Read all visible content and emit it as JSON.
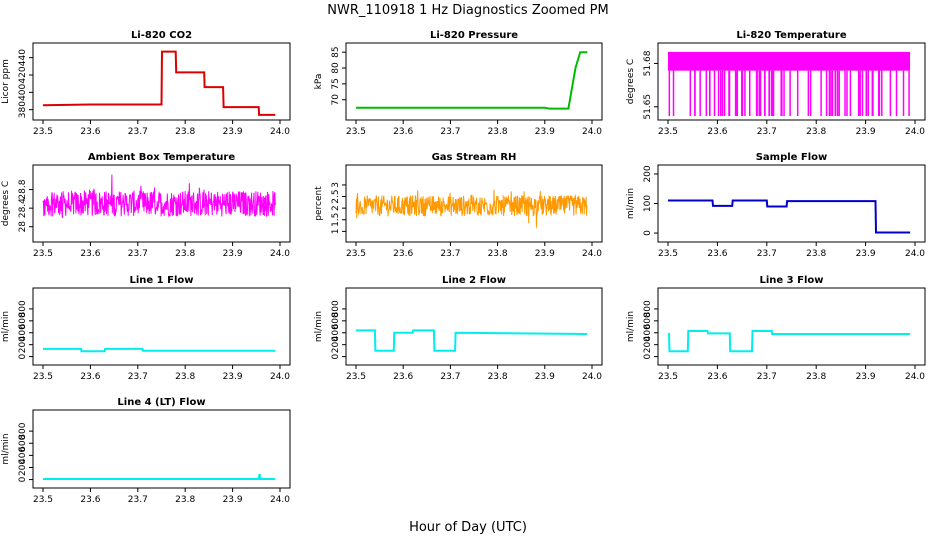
{
  "title": "NWR_110918  1 Hz Diagnostics Zoomed PM",
  "xlabel": "Hour of Day (UTC)",
  "chart_data": [
    {
      "type": "line",
      "title": "Li-820 CO2",
      "ylabel": "Licor ppm",
      "color": "#dd0000",
      "xlim": [
        23.5,
        24.0
      ],
      "ylim": [
        375,
        450
      ],
      "xticks": [
        "23.5",
        "23.6",
        "23.7",
        "23.8",
        "23.9",
        "24.0"
      ],
      "yticks": [
        380,
        400,
        420,
        440
      ],
      "x": [
        23.5,
        23.6,
        23.75,
        23.751,
        23.78,
        23.781,
        23.84,
        23.841,
        23.88,
        23.881,
        23.955,
        23.956,
        23.99
      ],
      "y": [
        385,
        386,
        386,
        447,
        447,
        423,
        423,
        406,
        406,
        383,
        383,
        374,
        374
      ]
    },
    {
      "type": "line",
      "title": "Li-820 Pressure",
      "ylabel": "kPa",
      "color": "#00bb00",
      "xlim": [
        23.5,
        24.0
      ],
      "ylim": [
        65.5,
        86
      ],
      "xticks": [
        "23.5",
        "23.6",
        "23.7",
        "23.8",
        "23.9",
        "24.0"
      ],
      "yticks": [
        70,
        75,
        80,
        85
      ],
      "x": [
        23.5,
        23.9,
        23.91,
        23.95,
        23.965,
        23.975,
        23.99
      ],
      "y": [
        67.5,
        67.5,
        67.2,
        67.2,
        80,
        85,
        85
      ]
    },
    {
      "type": "line",
      "title": "Li-820 Temperature",
      "ylabel": "degrees C",
      "color": "#ff00ff",
      "xlim": [
        23.5,
        24.0
      ],
      "ylim": [
        51.645,
        51.69
      ],
      "xticks": [
        "23.5",
        "23.6",
        "23.7",
        "23.8",
        "23.9",
        "24.0"
      ],
      "yticks": [
        51.65,
        51.68
      ],
      "x": [
        23.5,
        23.99
      ],
      "y": [
        51.675,
        51.675
      ]
    },
    {
      "type": "line",
      "title": "Ambient Box Temperature",
      "ylabel": "degrees C",
      "color": "#ff00ff",
      "xlim": [
        23.5,
        24.0
      ],
      "ylim": [
        27.8,
        29.2
      ],
      "xticks": [
        "23.5",
        "23.6",
        "23.7",
        "23.8",
        "23.9",
        "24.0"
      ],
      "yticks": [
        28.0,
        28.4,
        28.8
      ],
      "x": [
        23.5,
        23.99
      ],
      "y": [
        28.5,
        28.5
      ]
    },
    {
      "type": "line",
      "title": "Gas Stream RH",
      "ylabel": "percent",
      "color": "#ff9900",
      "xlim": [
        23.5,
        24.0
      ],
      "ylim": [
        0.8,
        3.6
      ],
      "xticks": [
        "23.5",
        "23.6",
        "23.7",
        "23.8",
        "23.9",
        "24.0"
      ],
      "yticks": [
        1.0,
        1.5,
        2.0,
        2.5,
        3.0
      ],
      "x": [
        23.5,
        23.99
      ],
      "y": [
        2.1,
        2.1
      ]
    },
    {
      "type": "line",
      "title": "Sample Flow",
      "ylabel": "ml/min",
      "color": "#0000cc",
      "xlim": [
        23.5,
        24.0
      ],
      "ylim": [
        -10,
        210
      ],
      "xticks": [
        "23.5",
        "23.6",
        "23.7",
        "23.8",
        "23.9",
        "24.0"
      ],
      "yticks": [
        0,
        100,
        200
      ],
      "x": [
        23.5,
        23.59,
        23.591,
        23.63,
        23.631,
        23.7,
        23.701,
        23.74,
        23.741,
        23.92,
        23.921,
        23.99
      ],
      "y": [
        110,
        110,
        92,
        92,
        110,
        110,
        90,
        90,
        108,
        108,
        2,
        2
      ]
    },
    {
      "type": "line",
      "title": "Line 1 Flow",
      "ylabel": "ml/min",
      "color": "#00eeee",
      "xlim": [
        23.5,
        24.0
      ],
      "ylim": [
        -40,
        1050
      ],
      "xticks": [
        "23.5",
        "23.6",
        "23.7",
        "23.8",
        "23.9",
        "24.0"
      ],
      "yticks": [
        0,
        200,
        400,
        600,
        800
      ],
      "x": [
        23.5,
        23.58,
        23.581,
        23.63,
        23.631,
        23.71,
        23.711,
        23.99
      ],
      "y": [
        130,
        130,
        90,
        90,
        130,
        130,
        100,
        100
      ]
    },
    {
      "type": "line",
      "title": "Line 2 Flow",
      "ylabel": "ml/min",
      "color": "#00eeee",
      "xlim": [
        23.5,
        24.0
      ],
      "ylim": [
        -40,
        1050
      ],
      "xticks": [
        "23.5",
        "23.6",
        "23.7",
        "23.8",
        "23.9",
        "24.0"
      ],
      "yticks": [
        0,
        200,
        400,
        600,
        800
      ],
      "x": [
        23.5,
        23.54,
        23.541,
        23.58,
        23.581,
        23.62,
        23.621,
        23.665,
        23.666,
        23.71,
        23.711,
        23.99
      ],
      "y": [
        440,
        440,
        100,
        100,
        400,
        400,
        440,
        440,
        100,
        100,
        400,
        380
      ]
    },
    {
      "type": "line",
      "title": "Line 3 Flow",
      "ylabel": "ml/min",
      "color": "#00eeee",
      "xlim": [
        23.5,
        24.0
      ],
      "ylim": [
        -40,
        1050
      ],
      "xticks": [
        "23.5",
        "23.6",
        "23.7",
        "23.8",
        "23.9",
        "24.0"
      ],
      "yticks": [
        0,
        200,
        400,
        600,
        800
      ],
      "x": [
        23.5,
        23.502,
        23.503,
        23.54,
        23.541,
        23.58,
        23.581,
        23.625,
        23.626,
        23.67,
        23.671,
        23.71,
        23.711,
        23.99
      ],
      "y": [
        380,
        380,
        90,
        90,
        430,
        430,
        390,
        390,
        90,
        90,
        430,
        430,
        380,
        380
      ]
    },
    {
      "type": "line",
      "title": "Line 4 (LT) Flow",
      "ylabel": "ml/min",
      "color": "#00eeee",
      "xlim": [
        23.5,
        24.0
      ],
      "ylim": [
        -40,
        1050
      ],
      "xticks": [
        "23.5",
        "23.6",
        "23.7",
        "23.8",
        "23.9",
        "24.0"
      ],
      "yticks": [
        0,
        200,
        400,
        600,
        800
      ],
      "x": [
        23.5,
        23.955,
        23.957,
        23.959,
        23.99
      ],
      "y": [
        10,
        10,
        90,
        10,
        10
      ]
    }
  ]
}
